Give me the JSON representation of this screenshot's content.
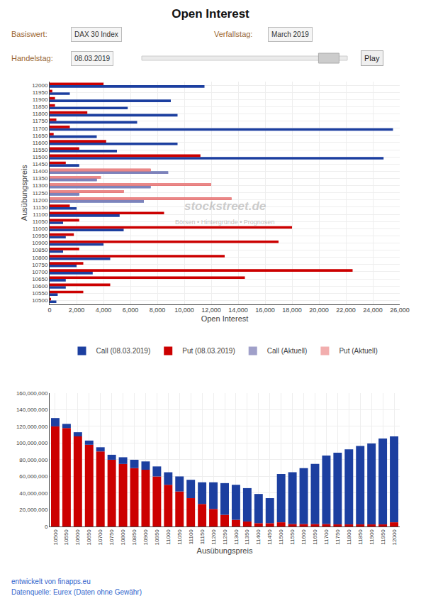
{
  "chart_data": [
    {
      "type": "bar",
      "orientation": "horizontal",
      "title": "Open Interest",
      "xlabel": "Open Interest",
      "ylabel": "Ausübungspreis",
      "categories": [
        "12000",
        "11950",
        "11900",
        "11850",
        "11800",
        "11750",
        "11700",
        "11650",
        "11600",
        "11550",
        "11500",
        "11450",
        "11400",
        "11350",
        "11300",
        "11250",
        "11200",
        "11150",
        "11100",
        "11050",
        "11000",
        "10950",
        "10900",
        "10850",
        "10800",
        "10750",
        "10700",
        "10650",
        "10600",
        "10550",
        "10500"
      ],
      "series": [
        {
          "name": "Call (08.03.2019)",
          "color": "#1c3fa0",
          "values": [
            11500,
            1500,
            9000,
            5800,
            9500,
            6500,
            25500,
            3500,
            9500,
            5000,
            24800,
            2200,
            8800,
            3500,
            7500,
            2200,
            7000,
            2000,
            5200,
            1000,
            5500,
            1200,
            4000,
            1000,
            4500,
            2000,
            3200,
            1200,
            1200,
            600,
            500
          ]
        },
        {
          "name": "Put (08.03.2019)",
          "color": "#cc0000",
          "values": [
            4000,
            200,
            400,
            400,
            2800,
            500,
            1500,
            300,
            4200,
            2200,
            11200,
            1200,
            7500,
            3800,
            12000,
            5500,
            13500,
            1500,
            8500,
            2200,
            18000,
            1800,
            17000,
            2200,
            13000,
            2500,
            22500,
            14500,
            4500,
            2500,
            100
          ]
        },
        {
          "name": "Call (Aktuell)",
          "color": "#9090c0",
          "values": [
            0,
            0,
            0,
            0,
            0,
            0,
            0,
            0,
            0,
            0,
            0,
            0,
            8800,
            3500,
            7500,
            2200,
            7000,
            0,
            0,
            0,
            0,
            0,
            0,
            0,
            0,
            0,
            0,
            0,
            0,
            0,
            0
          ]
        },
        {
          "name": "Put (Aktuell)",
          "color": "#f0a0a0",
          "values": [
            0,
            0,
            0,
            0,
            0,
            0,
            0,
            0,
            0,
            0,
            0,
            0,
            7500,
            3800,
            12000,
            5500,
            13500,
            0,
            0,
            0,
            0,
            0,
            0,
            0,
            0,
            0,
            0,
            0,
            0,
            0,
            0
          ]
        }
      ],
      "xlim": [
        0,
        26000
      ],
      "xticks": [
        0,
        {
          "value": 2000,
          "label": "2,000"
        },
        {
          "value": 4000,
          "label": "4,000"
        },
        {
          "value": 6000,
          "label": "6,000"
        },
        {
          "value": 8000,
          "label": "8,000"
        },
        {
          "value": 10000,
          "label": "10,000"
        },
        {
          "value": 12000,
          "label": "12,000"
        },
        {
          "value": 14000,
          "label": "14,000"
        },
        {
          "value": 16000,
          "label": "16,000"
        },
        {
          "value": 18000,
          "label": "18,000"
        },
        {
          "value": 20000,
          "label": "20,000"
        },
        {
          "value": 22000,
          "label": "22,000"
        },
        {
          "value": 24000,
          "label": "24,000"
        },
        {
          "value": 26000,
          "label": "26,000"
        }
      ],
      "grid": true,
      "legend": "bottom",
      "annotations": [
        "Basiswert:",
        "DAX 30 Index",
        "Verfallstag:",
        "March 2019",
        "Handelstag:",
        "08.03.2019",
        "Play",
        "stockstreet.de",
        "Börsen • Hintergründe • Prognosen"
      ]
    },
    {
      "type": "bar",
      "stacked": true,
      "xlabel": "Ausübungspreis",
      "categories": [
        "10500",
        "10550",
        "10600",
        "10650",
        "10700",
        "10750",
        "10800",
        "10850",
        "10900",
        "10950",
        "11000",
        "11050",
        "11100",
        "11150",
        "11200",
        "11250",
        "11300",
        "11350",
        "11400",
        "11450",
        "11500",
        "11550",
        "11600",
        "11650",
        "11700",
        "11750",
        "11800",
        "11850",
        "11900",
        "11950",
        "12000"
      ],
      "series": [
        {
          "name": "Put (08.03.2019)",
          "color": "#cc0000",
          "values": [
            120000000,
            118000000,
            108000000,
            98000000,
            90000000,
            80000000,
            75000000,
            70000000,
            68000000,
            60000000,
            50000000,
            42000000,
            34000000,
            27000000,
            21000000,
            14000000,
            8000000,
            6000000,
            4000000,
            4000000,
            5000000,
            3000000,
            3000000,
            3000000,
            3000000,
            2500000,
            2500000,
            2500000,
            2500000,
            2500000,
            5000000
          ]
        },
        {
          "name": "Call (08.03.2019)",
          "color": "#1c3fa0",
          "values": [
            10000000,
            5000000,
            5000000,
            5000000,
            5000000,
            6000000,
            8000000,
            10000000,
            10000000,
            12000000,
            15000000,
            18000000,
            22000000,
            26000000,
            32000000,
            38000000,
            42000000,
            40000000,
            35000000,
            30000000,
            58000000,
            62000000,
            67000000,
            72000000,
            82000000,
            86000000,
            90000000,
            94000000,
            97000000,
            103000000,
            103000000
          ]
        }
      ],
      "ylim": [
        0,
        160000000
      ],
      "yticks": [
        0,
        {
          "value": 20000000,
          "label": "20,000,000"
        },
        {
          "value": 40000000,
          "label": "40,000,000"
        },
        {
          "value": 60000000,
          "label": "60,000,000"
        },
        {
          "value": 80000000,
          "label": "80,000,000"
        },
        {
          "value": 100000000,
          "label": "100,000,000"
        },
        {
          "value": 120000000,
          "label": "120,000,000"
        },
        {
          "value": 140000000,
          "label": "140,000,000"
        },
        {
          "value": 160000000,
          "label": "160,000,000"
        }
      ],
      "grid": true,
      "annotations": [
        "entwickelt von finapps.eu",
        "Datenquelle: Eurex (Daten ohne Gewähr)"
      ]
    }
  ]
}
